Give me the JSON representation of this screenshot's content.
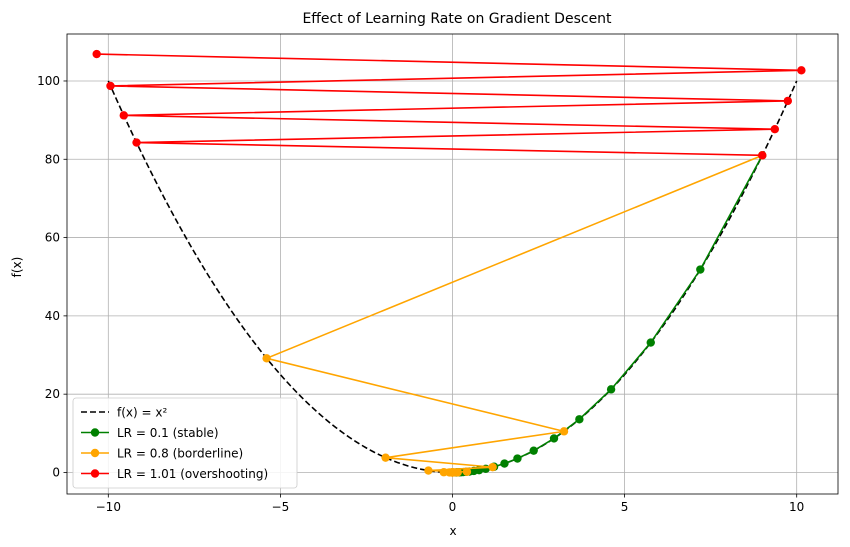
{
  "chart_data": {
    "type": "line",
    "title": "Effect of Learning Rate on Gradient Descent",
    "xlabel": "x",
    "ylabel": "f(x)",
    "xlim": [
      -11.2,
      11.2
    ],
    "ylim": [
      -5.5,
      112
    ],
    "xticks": [
      -10,
      -5,
      0,
      5,
      10
    ],
    "xtick_labels": [
      "−10",
      "−5",
      "0",
      "5",
      "10"
    ],
    "yticks": [
      0,
      20,
      40,
      60,
      80,
      100
    ],
    "ytick_labels": [
      "0",
      "20",
      "40",
      "60",
      "80",
      "100"
    ],
    "grid": true,
    "legend_position": "lower-left",
    "curve": {
      "name": "f(x) = x²",
      "color": "#000000",
      "style": "dashed",
      "x_range": [
        -10,
        10
      ]
    },
    "series": [
      {
        "name": "LR = 0.1 (stable)",
        "color": "#008000",
        "x": [
          9,
          7.2,
          5.76,
          4.608,
          3.686,
          2.949,
          2.359,
          1.887,
          1.51,
          1.208,
          0.966,
          0.773,
          0.618,
          0.495,
          0.396,
          0.317,
          0.253,
          0.203,
          0.162,
          0.13,
          0.104
        ],
        "y": [
          81,
          51.84,
          33.18,
          21.23,
          13.59,
          8.7,
          5.57,
          3.56,
          2.28,
          1.46,
          0.93,
          0.6,
          0.38,
          0.24,
          0.16,
          0.1,
          0.06,
          0.04,
          0.03,
          0.02,
          0.01
        ]
      },
      {
        "name": "LR = 0.8 (borderline)",
        "color": "#ffa500",
        "x": [
          9,
          -5.4,
          3.24,
          -1.944,
          1.166,
          -0.7,
          0.42,
          -0.252,
          0.151,
          -0.091,
          0.054,
          -0.033,
          0.02,
          -0.012,
          0.007,
          -0.004,
          0.003,
          -0.002,
          0.001,
          -0.001,
          0.0004
        ],
        "y": [
          81,
          29.16,
          10.5,
          3.78,
          1.36,
          0.49,
          0.18,
          0.06,
          0.02,
          0.01,
          0.003,
          0.001,
          0.0004,
          0.0001,
          0.0001,
          0,
          0,
          0,
          0,
          0,
          0
        ]
      },
      {
        "name": "LR = 1.01 (overshooting)",
        "color": "#ff0000",
        "x": [
          9,
          -9.18,
          9.364,
          -9.551,
          9.742,
          -9.937,
          10.136,
          -10.338
        ],
        "y": [
          81,
          84.27,
          87.68,
          91.22,
          94.91,
          98.74,
          102.73,
          106.88
        ]
      }
    ]
  }
}
